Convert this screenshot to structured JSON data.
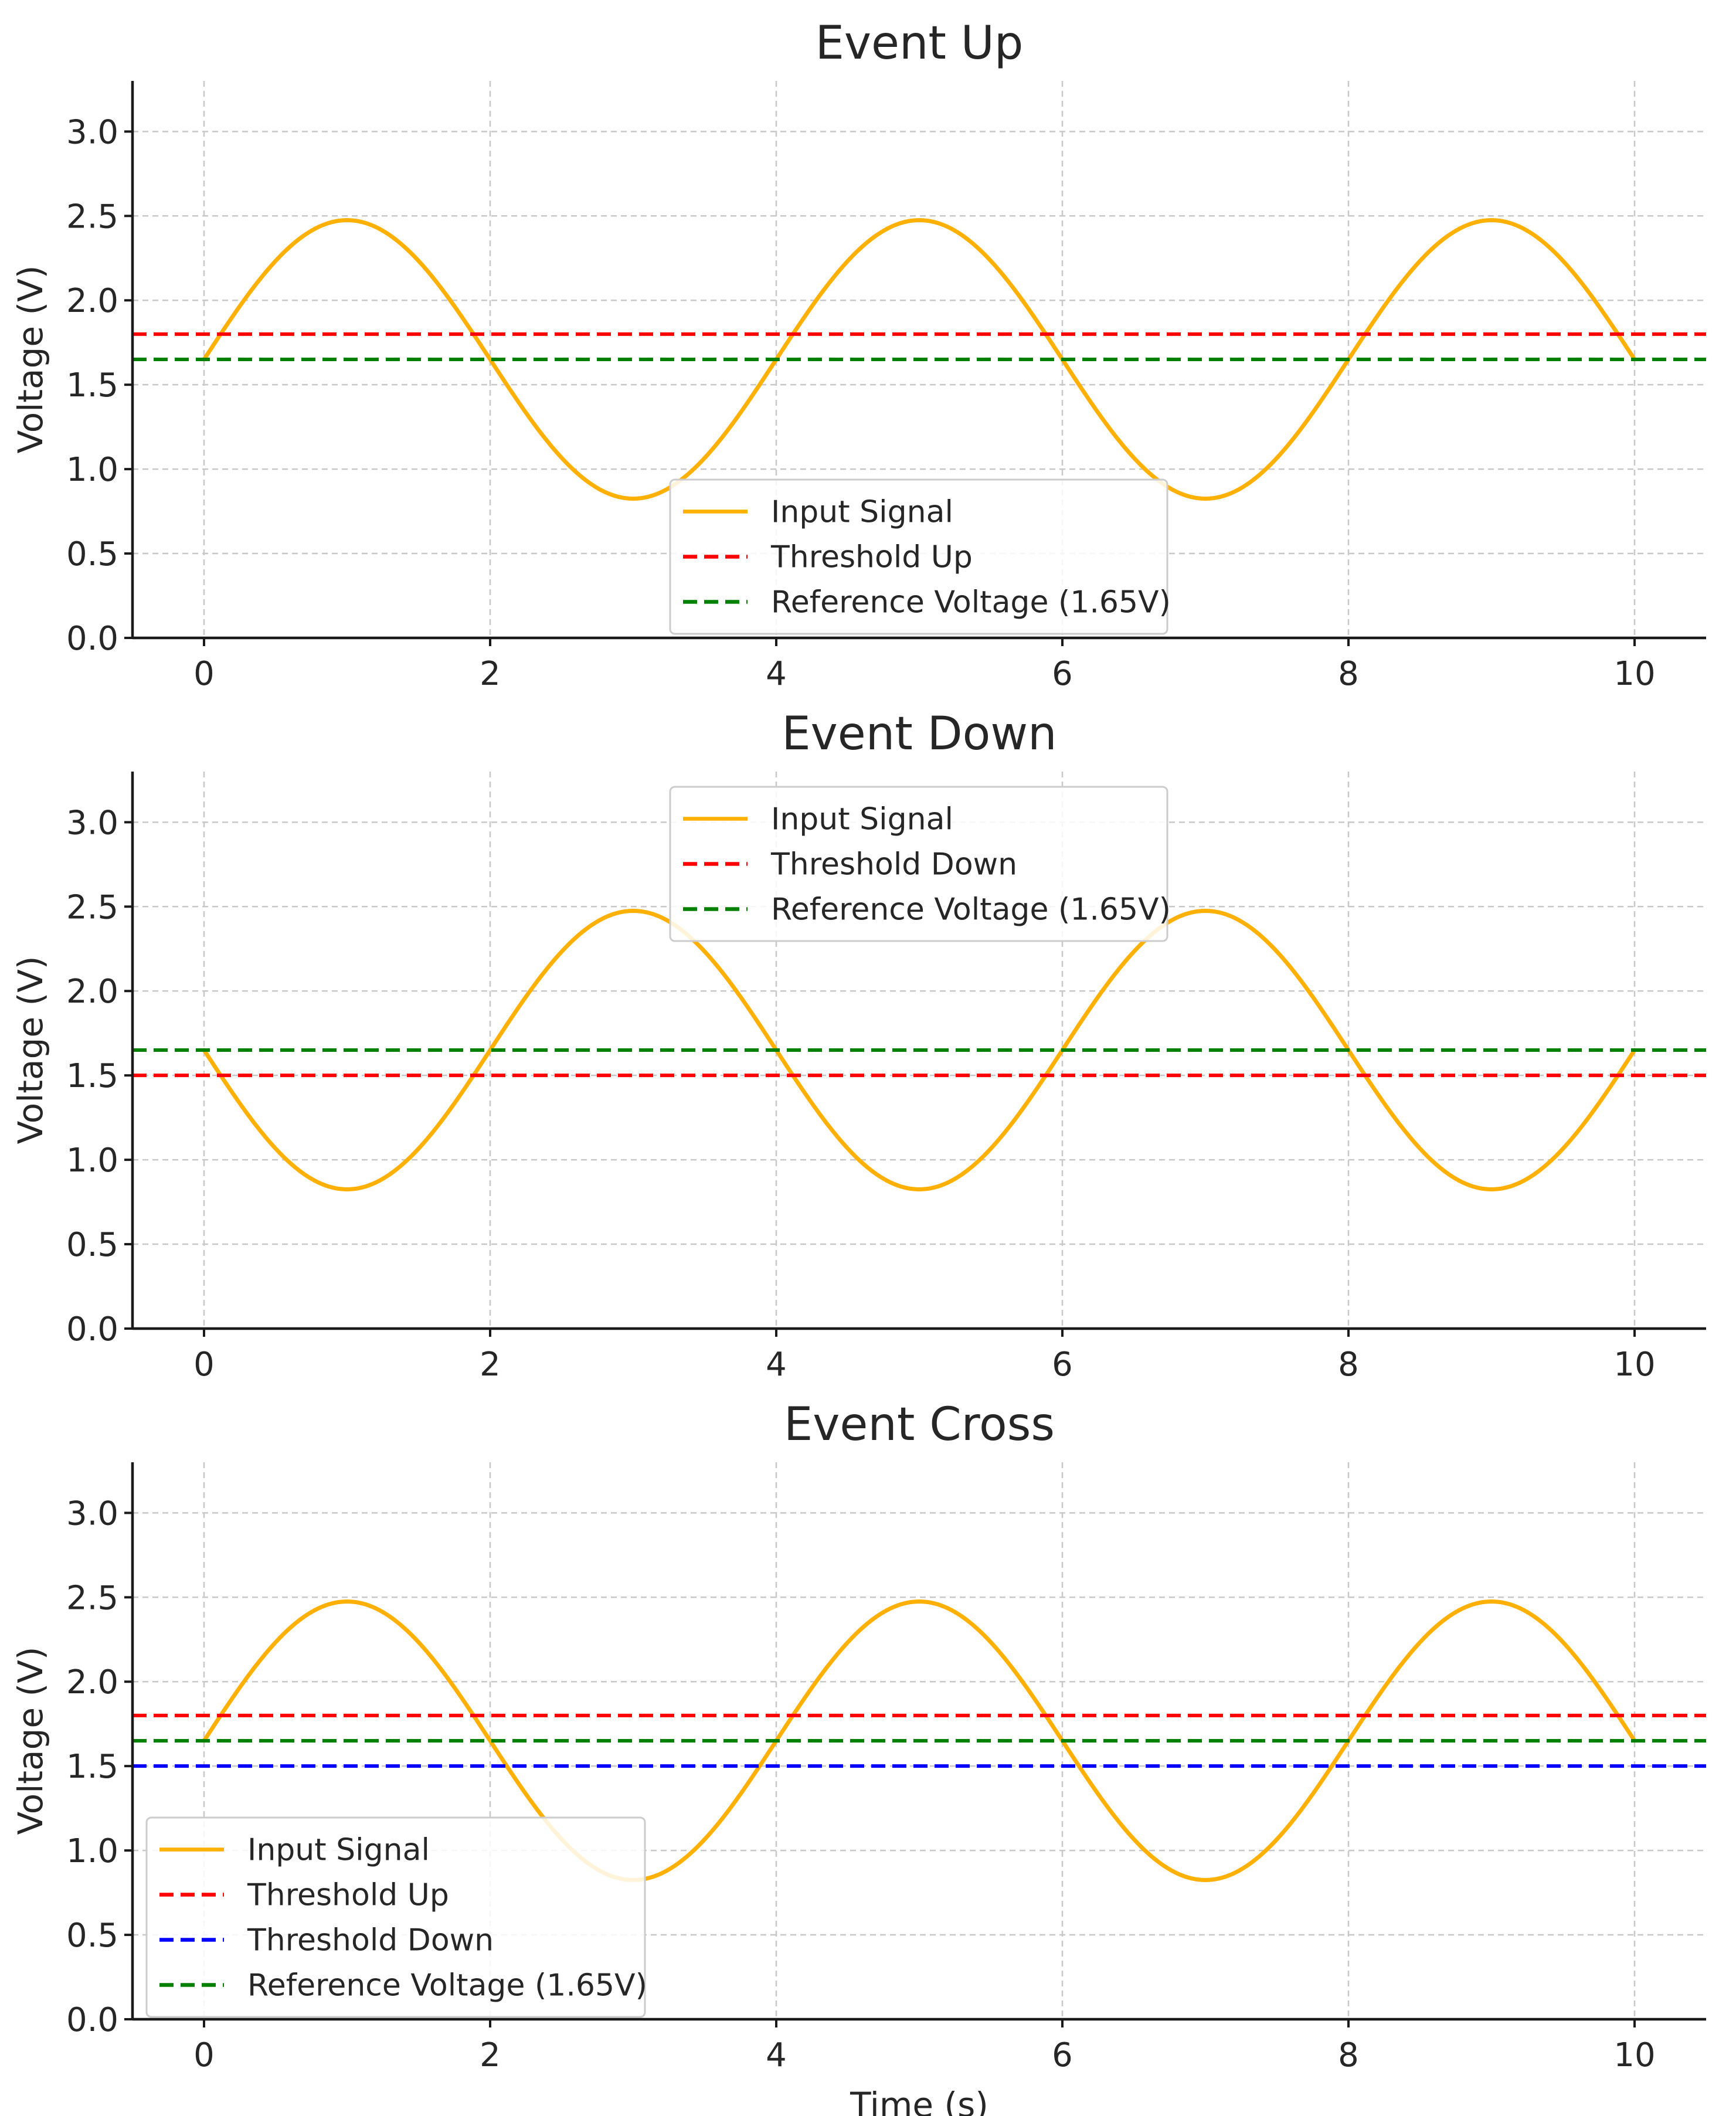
{
  "chart_data": [
    {
      "type": "line",
      "title": "Event Up",
      "xlabel": "",
      "ylabel": "Voltage (V)",
      "xlim": [
        -0.5,
        10.5
      ],
      "ylim": [
        0,
        3.3
      ],
      "x_ticks": [
        0,
        2,
        4,
        6,
        8,
        10
      ],
      "x_tick_labels": [
        "0",
        "2",
        "4",
        "6",
        "8",
        "10"
      ],
      "y_ticks": [
        0,
        0.5,
        1.0,
        1.5,
        2.0,
        2.5,
        3.0
      ],
      "y_tick_labels": [
        "0.0",
        "0.5",
        "1.0",
        "1.5",
        "2.0",
        "2.5",
        "3.0"
      ],
      "grid": true,
      "legend_position": "lower-center",
      "series": [
        {
          "name": "Input Signal",
          "kind": "sine",
          "offset": 1.65,
          "amplitude": 0.825,
          "period": 4,
          "phase_sign": 1,
          "x_range": [
            0,
            10
          ],
          "color": "#FFB000",
          "style": "solid"
        },
        {
          "name": "Threshold Up",
          "kind": "hline",
          "y": 1.8,
          "color": "#FF0000",
          "style": "dashed"
        },
        {
          "name": "Reference Voltage (1.65V)",
          "kind": "hline",
          "y": 1.65,
          "color": "#008000",
          "style": "dashed"
        }
      ]
    },
    {
      "type": "line",
      "title": "Event Down",
      "xlabel": "",
      "ylabel": "Voltage (V)",
      "xlim": [
        -0.5,
        10.5
      ],
      "ylim": [
        0,
        3.3
      ],
      "x_ticks": [
        0,
        2,
        4,
        6,
        8,
        10
      ],
      "x_tick_labels": [
        "0",
        "2",
        "4",
        "6",
        "8",
        "10"
      ],
      "y_ticks": [
        0,
        0.5,
        1.0,
        1.5,
        2.0,
        2.5,
        3.0
      ],
      "y_tick_labels": [
        "0.0",
        "0.5",
        "1.0",
        "1.5",
        "2.0",
        "2.5",
        "3.0"
      ],
      "grid": true,
      "legend_position": "upper-center",
      "series": [
        {
          "name": "Input Signal",
          "kind": "sine",
          "offset": 1.65,
          "amplitude": 0.825,
          "period": 4,
          "phase_sign": -1,
          "x_range": [
            0,
            10
          ],
          "color": "#FFB000",
          "style": "solid"
        },
        {
          "name": "Threshold Down",
          "kind": "hline",
          "y": 1.5,
          "color": "#FF0000",
          "style": "dashed"
        },
        {
          "name": "Reference Voltage (1.65V)",
          "kind": "hline",
          "y": 1.65,
          "color": "#008000",
          "style": "dashed"
        }
      ]
    },
    {
      "type": "line",
      "title": "Event Cross",
      "xlabel": "Time (s)",
      "ylabel": "Voltage (V)",
      "xlim": [
        -0.5,
        10.5
      ],
      "ylim": [
        0,
        3.3
      ],
      "x_ticks": [
        0,
        2,
        4,
        6,
        8,
        10
      ],
      "x_tick_labels": [
        "0",
        "2",
        "4",
        "6",
        "8",
        "10"
      ],
      "y_ticks": [
        0,
        0.5,
        1.0,
        1.5,
        2.0,
        2.5,
        3.0
      ],
      "y_tick_labels": [
        "0.0",
        "0.5",
        "1.0",
        "1.5",
        "2.0",
        "2.5",
        "3.0"
      ],
      "grid": true,
      "legend_position": "lower-left",
      "series": [
        {
          "name": "Input Signal",
          "kind": "sine",
          "offset": 1.65,
          "amplitude": 0.825,
          "period": 4,
          "phase_sign": 1,
          "x_range": [
            0,
            10
          ],
          "color": "#FFB000",
          "style": "solid"
        },
        {
          "name": "Threshold Up",
          "kind": "hline",
          "y": 1.8,
          "color": "#FF0000",
          "style": "dashed"
        },
        {
          "name": "Threshold Down",
          "kind": "hline",
          "y": 1.5,
          "color": "#0000FF",
          "style": "dashed"
        },
        {
          "name": "Reference Voltage (1.65V)",
          "kind": "hline",
          "y": 1.65,
          "color": "#008000",
          "style": "dashed"
        }
      ]
    }
  ]
}
